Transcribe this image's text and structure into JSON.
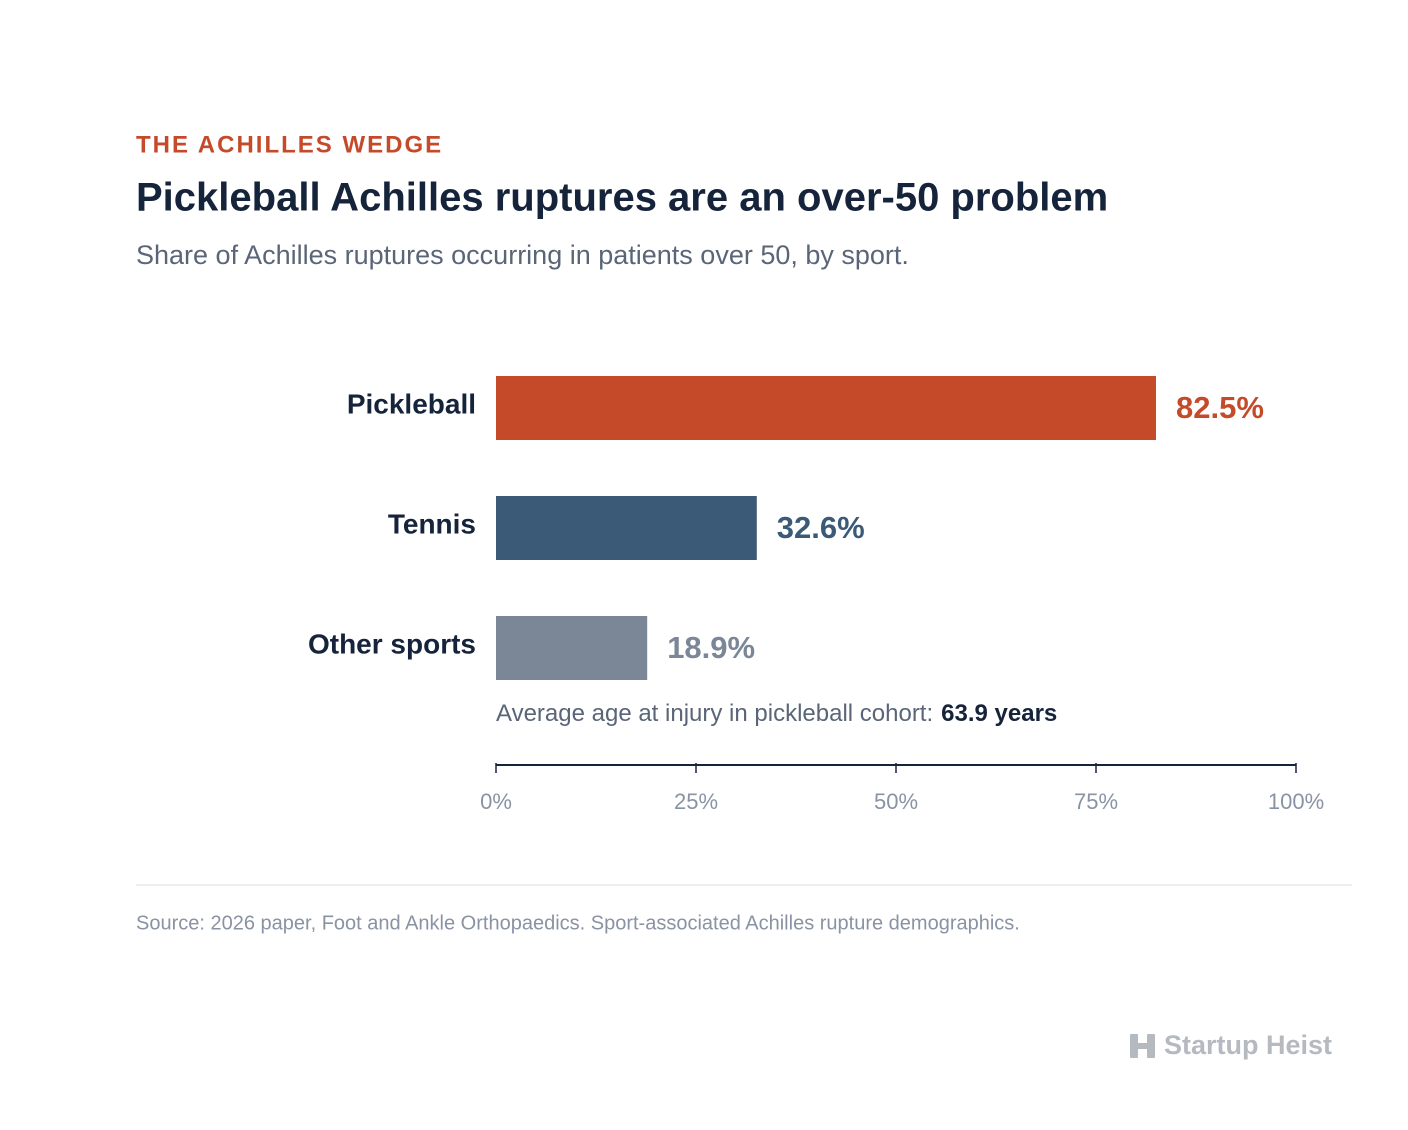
{
  "chart_data": {
    "type": "bar",
    "orientation": "horizontal",
    "kicker": "THE ACHILLES WEDGE",
    "title": "Pickleball Achilles ruptures are an over-50 problem",
    "subtitle": "Share of Achilles ruptures occurring in patients over 50, by sport.",
    "categories": [
      "Pickleball",
      "Tennis",
      "Other sports"
    ],
    "values": [
      82.5,
      32.6,
      18.9
    ],
    "value_labels": [
      "82.5%",
      "32.6%",
      "18.9%"
    ],
    "colors": [
      "#c44a2a",
      "#3b5a78",
      "#7b8797"
    ],
    "xlim": [
      0,
      100
    ],
    "xticks": [
      {
        "value": 0,
        "label": "0%"
      },
      {
        "value": 25,
        "label": "25%"
      },
      {
        "value": 50,
        "label": "50%"
      },
      {
        "value": 75,
        "label": "75%"
      },
      {
        "value": 100,
        "label": "100%"
      }
    ],
    "grid": false,
    "annotation": {
      "text": "Average age at injury in pickleball cohort:",
      "highlight": "63.9 years"
    },
    "source": "Source: 2026 paper, Foot and Ankle Orthopaedics. Sport-associated Achilles rupture demographics.",
    "brand": "Startup Heist"
  }
}
